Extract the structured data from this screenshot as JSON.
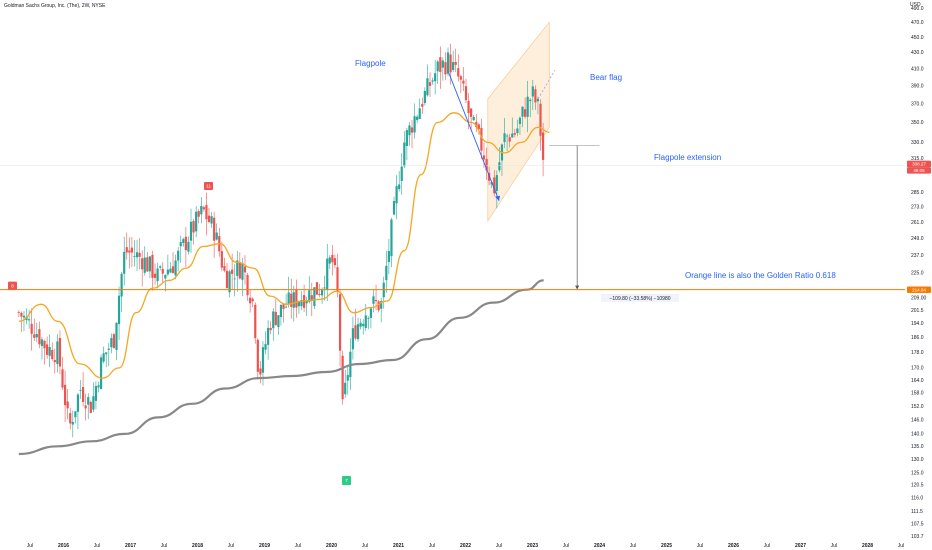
{
  "header": {
    "symbol_line": "Goldman Sachs Group, Inc. (The), 2W, NYSE"
  },
  "price_axis": {
    "currency": "USD",
    "ticks": [
      490.0,
      470.0,
      450.0,
      430.0,
      410.0,
      390.0,
      370.0,
      350.0,
      330.0,
      315.0,
      285.0,
      273.0,
      261.0,
      249.0,
      237.0,
      225.0,
      209.0,
      201.5,
      194.0,
      186.0,
      178.0,
      170.0,
      164.0,
      158.0,
      152.0,
      146.0,
      140.0,
      135.0,
      130.0,
      125.0,
      120.5,
      116.0,
      111.5,
      107.5,
      103.7
    ]
  },
  "time_axis": {
    "ticks": [
      "Jul",
      "2016",
      "Jul",
      "2017",
      "Jul",
      "2018",
      "Jul",
      "2019",
      "Jul",
      "2020",
      "Jul",
      "2021",
      "Jul",
      "2022",
      "Jul",
      "2023",
      "Jul",
      "2024",
      "Jul",
      "2025",
      "Jul",
      "2026",
      "Jul",
      "2027",
      "Jul",
      "2028",
      "Jul"
    ]
  },
  "badges": {
    "last_price": "308.27",
    "last_sub": "46:05",
    "support_level": "214.04",
    "marker_left": "8",
    "marker_top": "11",
    "marker_bottom": "7"
  },
  "annotations": {
    "flagpole": "Flagpole",
    "bear_flag": "Bear flag",
    "flagpole_extension": "Flagpole extension",
    "golden_ratio": "Orange line is also the Golden Ratio 0.618",
    "measure": "−109.80 (−33.58%) −10980"
  },
  "colors": {
    "up": "#26a69a",
    "down": "#ef5350",
    "ma_short": "#f5a623",
    "ma_long": "#888888",
    "support_line": "#f57c00",
    "channel_fill": "#fde8cf",
    "annotation_text": "#2962ff",
    "arrow": "#2962ff"
  },
  "chart_data": {
    "type": "candlestick",
    "title": "Goldman Sachs Group, Inc. (The), 2W, NYSE",
    "scale": "log",
    "ylim": [
      103.7,
      495
    ],
    "y_unit": "USD",
    "period": "2W",
    "x_range": [
      "2015-05",
      "2028-12"
    ],
    "support_level": 214,
    "series": [
      {
        "name": "",
        "type": "candlestick",
        "close_path": [
          [
            "2015-05",
            200
          ],
          [
            "2015-08",
            190
          ],
          [
            "2015-10",
            180
          ],
          [
            "2015-12",
            178
          ],
          [
            "2016-02",
            142
          ],
          [
            "2016-04",
            160
          ],
          [
            "2016-06",
            152
          ],
          [
            "2016-08",
            175
          ],
          [
            "2016-10",
            185
          ],
          [
            "2016-12",
            240
          ],
          [
            "2017-03",
            235
          ],
          [
            "2017-06",
            222
          ],
          [
            "2017-09",
            232
          ],
          [
            "2017-12",
            255
          ],
          [
            "2018-02",
            270
          ],
          [
            "2018-04",
            255
          ],
          [
            "2018-06",
            222
          ],
          [
            "2018-09",
            230
          ],
          [
            "2018-11",
            205
          ],
          [
            "2018-12",
            165
          ],
          [
            "2019-02",
            195
          ],
          [
            "2019-05",
            205
          ],
          [
            "2019-08",
            210
          ],
          [
            "2019-11",
            215
          ],
          [
            "2020-01",
            235
          ],
          [
            "2020-02",
            215
          ],
          [
            "2020-03",
            150
          ],
          [
            "2020-05",
            190
          ],
          [
            "2020-08",
            205
          ],
          [
            "2020-10",
            205
          ],
          [
            "2020-12",
            262
          ],
          [
            "2021-02",
            330
          ],
          [
            "2021-05",
            370
          ],
          [
            "2021-08",
            410
          ],
          [
            "2021-10",
            420
          ],
          [
            "2021-12",
            395
          ],
          [
            "2022-02",
            350
          ],
          [
            "2022-04",
            325
          ],
          [
            "2022-06",
            285
          ],
          [
            "2022-08",
            335
          ],
          [
            "2022-10",
            340
          ],
          [
            "2022-12",
            370
          ],
          [
            "2023-01",
            380
          ],
          [
            "2023-02",
            365
          ],
          [
            "2023-03",
            308
          ]
        ]
      },
      {
        "name": "",
        "type": "line",
        "points": [
          [
            "2015-05",
            195
          ],
          [
            "2015-09",
            205
          ],
          [
            "2015-12",
            195
          ],
          [
            "2016-04",
            172
          ],
          [
            "2016-08",
            165
          ],
          [
            "2016-11",
            170
          ],
          [
            "2017-02",
            200
          ],
          [
            "2017-05",
            215
          ],
          [
            "2017-08",
            220
          ],
          [
            "2017-11",
            228
          ],
          [
            "2018-02",
            243
          ],
          [
            "2018-05",
            245
          ],
          [
            "2018-08",
            232
          ],
          [
            "2018-11",
            228
          ],
          [
            "2019-02",
            210
          ],
          [
            "2019-05",
            205
          ],
          [
            "2019-08",
            207
          ],
          [
            "2019-11",
            208
          ],
          [
            "2020-02",
            213
          ],
          [
            "2020-05",
            200
          ],
          [
            "2020-08",
            203
          ],
          [
            "2020-11",
            207
          ],
          [
            "2021-02",
            240
          ],
          [
            "2021-05",
            300
          ],
          [
            "2021-08",
            350
          ],
          [
            "2021-11",
            360
          ],
          [
            "2022-02",
            350
          ],
          [
            "2022-05",
            330
          ],
          [
            "2022-08",
            320
          ],
          [
            "2022-11",
            330
          ],
          [
            "2023-02",
            345
          ],
          [
            "2023-04",
            340
          ]
        ]
      },
      {
        "name": "",
        "type": "line",
        "points": [
          [
            "2015-05",
            132
          ],
          [
            "2015-12",
            135
          ],
          [
            "2016-06",
            137
          ],
          [
            "2016-12",
            140
          ],
          [
            "2017-06",
            147
          ],
          [
            "2017-12",
            153
          ],
          [
            "2018-06",
            160
          ],
          [
            "2018-12",
            165
          ],
          [
            "2019-06",
            166
          ],
          [
            "2019-12",
            168
          ],
          [
            "2020-06",
            172
          ],
          [
            "2020-12",
            174
          ],
          [
            "2021-06",
            185
          ],
          [
            "2021-12",
            197
          ],
          [
            "2022-06",
            206
          ],
          [
            "2022-12",
            214
          ],
          [
            "2023-03",
            220
          ]
        ]
      }
    ],
    "bear_flag_channel": {
      "upper": [
        [
          "2022-05",
          375
        ],
        [
          "2023-04",
          470
        ]
      ],
      "lower": [
        [
          "2022-05",
          262
        ],
        [
          "2023-04",
          345
        ]
      ]
    },
    "flagpole_arrow": {
      "from": [
        "2021-10",
        405
      ],
      "to": [
        "2022-07",
        278
      ]
    },
    "measure_arrow": {
      "from": [
        "2023-09",
        327
      ],
      "to": [
        "2023-09",
        214
      ]
    },
    "measure_label": "−109.80 (−33.58%) −10980"
  }
}
